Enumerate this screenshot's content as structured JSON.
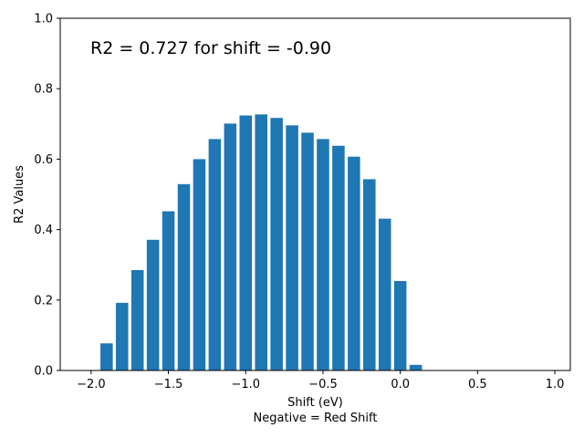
{
  "chart_data": {
    "type": "bar",
    "annotation": "R2 = 0.727 for shift = -0.90",
    "xlabel": "Shift (eV)",
    "xlabel2": "Negative = Red Shift",
    "ylabel": "R2 Values",
    "xlim": [
      -2.2,
      1.1
    ],
    "ylim": [
      0.0,
      1.0
    ],
    "xticks": [
      -2.0,
      -1.5,
      -1.0,
      -0.5,
      0.0,
      0.5,
      1.0
    ],
    "xtick_labels": [
      "−2.0",
      "−1.5",
      "−1.0",
      "−0.5",
      "0.0",
      "0.5",
      "1.0"
    ],
    "yticks": [
      0.0,
      0.2,
      0.4,
      0.6,
      0.8,
      1.0
    ],
    "ytick_labels": [
      "0.0",
      "0.2",
      "0.4",
      "0.6",
      "0.8",
      "1.0"
    ],
    "bar_width": 0.08,
    "bar_color": "#1f77b4",
    "x": [
      -2.0,
      -1.9,
      -1.8,
      -1.7,
      -1.6,
      -1.5,
      -1.4,
      -1.3,
      -1.2,
      -1.1,
      -1.0,
      -0.9,
      -0.8,
      -0.7,
      -0.6,
      -0.5,
      -0.4,
      -0.3,
      -0.2,
      -0.1,
      0.0,
      0.1,
      0.2,
      0.3,
      0.4,
      0.5,
      0.6,
      0.7,
      0.8,
      0.9,
      1.0
    ],
    "values": [
      0.0,
      0.077,
      0.192,
      0.285,
      0.371,
      0.452,
      0.529,
      0.6,
      0.657,
      0.701,
      0.724,
      0.727,
      0.717,
      0.696,
      0.675,
      0.657,
      0.638,
      0.607,
      0.543,
      0.431,
      0.254,
      0.016,
      0,
      0,
      0,
      0,
      0,
      0,
      0,
      0,
      0
    ]
  }
}
